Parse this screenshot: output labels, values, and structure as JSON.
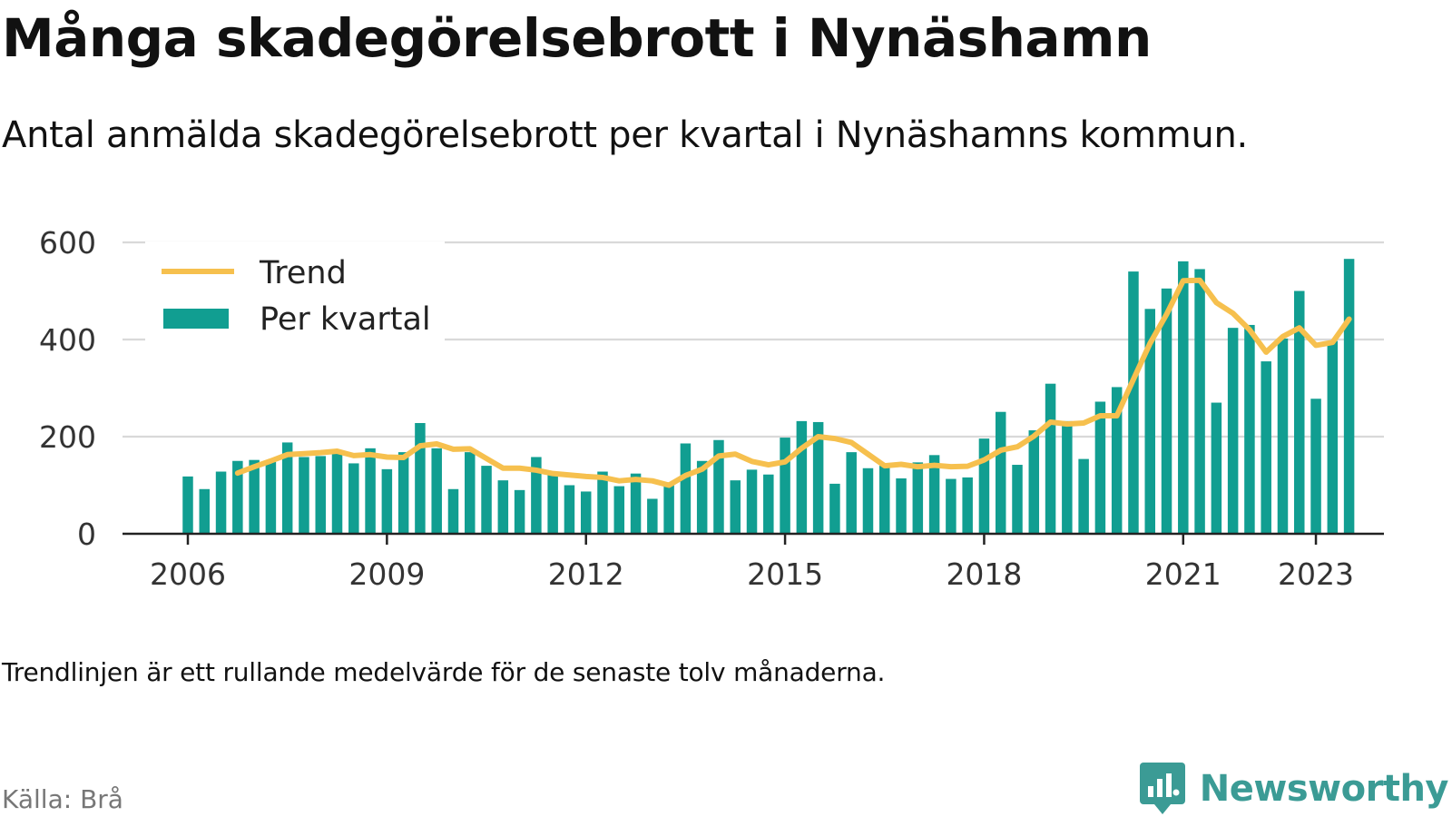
{
  "header": {
    "title": "Många skadegörelsebrott i Nynäshamn",
    "subtitle": "Antal anmälda skadegörelsebrott per kvartal i Nynäshamns kommun."
  },
  "footer": {
    "note": "Trendlinjen är ett rullande medelvärde för de senaste tolv månaderna.",
    "source": "Källa: Brå",
    "brand": "Newsworthy",
    "brand_icon": "newsworthy-logo-icon"
  },
  "colors": {
    "bars": "#119e91",
    "trend": "#f6c04e",
    "grid": "#d9d9d9",
    "axis": "#222222",
    "brand": "#3b9b95"
  },
  "chart_data": {
    "type": "bar",
    "title": "Många skadegörelsebrott i Nynäshamn",
    "subtitle": "Antal anmälda skadegörelsebrott per kvartal i Nynäshamns kommun.",
    "xlabel": "",
    "ylabel": "",
    "ylim": [
      0,
      600
    ],
    "yticks": [
      0,
      200,
      400,
      600
    ],
    "xticks": [
      "2006",
      "2009",
      "2012",
      "2015",
      "2018",
      "2021",
      "2023"
    ],
    "grid": true,
    "legend_position": "top-left",
    "categories": [
      "2006 Q1",
      "2006 Q2",
      "2006 Q3",
      "2006 Q4",
      "2007 Q1",
      "2007 Q2",
      "2007 Q3",
      "2007 Q4",
      "2008 Q1",
      "2008 Q2",
      "2008 Q3",
      "2008 Q4",
      "2009 Q1",
      "2009 Q2",
      "2009 Q3",
      "2009 Q4",
      "2010 Q1",
      "2010 Q2",
      "2010 Q3",
      "2010 Q4",
      "2011 Q1",
      "2011 Q2",
      "2011 Q3",
      "2011 Q4",
      "2012 Q1",
      "2012 Q2",
      "2012 Q3",
      "2012 Q4",
      "2013 Q1",
      "2013 Q2",
      "2013 Q3",
      "2013 Q4",
      "2014 Q1",
      "2014 Q2",
      "2014 Q3",
      "2014 Q4",
      "2015 Q1",
      "2015 Q2",
      "2015 Q3",
      "2015 Q4",
      "2016 Q1",
      "2016 Q2",
      "2016 Q3",
      "2016 Q4",
      "2017 Q1",
      "2017 Q2",
      "2017 Q3",
      "2017 Q4",
      "2018 Q1",
      "2018 Q2",
      "2018 Q3",
      "2018 Q4",
      "2019 Q1",
      "2019 Q2",
      "2019 Q3",
      "2019 Q4",
      "2020 Q1",
      "2020 Q2",
      "2020 Q3",
      "2020 Q4",
      "2021 Q1",
      "2021 Q2",
      "2021 Q3",
      "2021 Q4",
      "2022 Q1",
      "2022 Q2",
      "2022 Q3",
      "2022 Q4",
      "2023 Q1",
      "2023 Q2",
      "2023 Q3"
    ],
    "series": [
      {
        "name": "Per kvartal",
        "type": "bar",
        "values": [
          118,
          92,
          128,
          150,
          152,
          148,
          188,
          158,
          160,
          165,
          145,
          176,
          133,
          168,
          228,
          176,
          92,
          168,
          140,
          110,
          90,
          158,
          122,
          100,
          87,
          128,
          98,
          124,
          72,
          100,
          186,
          150,
          193,
          110,
          132,
          122,
          198,
          232,
          230,
          103,
          168,
          135,
          140,
          114,
          147,
          162,
          113,
          116,
          196,
          251,
          142,
          213,
          309,
          232,
          154,
          272,
          302,
          540,
          463,
          505,
          561,
          545,
          270,
          424,
          430,
          355,
          402,
          500,
          278,
          397,
          566
        ]
      },
      {
        "name": "Trend",
        "type": "line",
        "values": [
          null,
          null,
          null,
          125,
          138,
          150,
          163,
          165,
          167,
          170,
          161,
          163,
          158,
          157,
          181,
          185,
          174,
          175,
          155,
          135,
          135,
          131,
          124,
          121,
          118,
          116,
          109,
          112,
          109,
          100,
          120,
          133,
          160,
          164,
          149,
          142,
          148,
          176,
          200,
          196,
          188,
          164,
          140,
          143,
          138,
          141,
          138,
          139,
          152,
          172,
          179,
          201,
          230,
          226,
          228,
          243,
          243,
          318,
          392,
          452,
          521,
          522,
          476,
          454,
          420,
          374,
          406,
          424,
          388,
          394,
          442
        ]
      }
    ]
  }
}
